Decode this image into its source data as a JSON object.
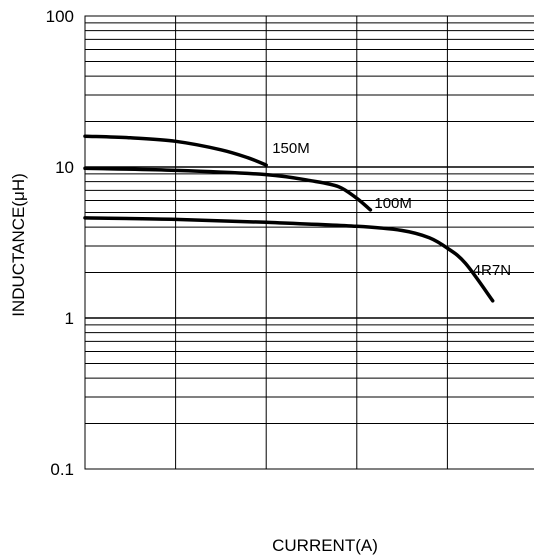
{
  "chart_data": {
    "type": "line",
    "title": "",
    "xlabel": "CURRENT(A)",
    "ylabel": "INDUCTANCE(μH)",
    "yscale": "log",
    "ylim": [
      0.1,
      100
    ],
    "yticks": [
      "100",
      "10",
      "1",
      "0.1"
    ],
    "xticks": [],
    "grid": true,
    "series": [
      {
        "name": "150M",
        "x": [
          0,
          0.5,
          1.0,
          1.5,
          1.8,
          2.0
        ],
        "y": [
          16,
          15.6,
          14.8,
          13,
          11.5,
          10.3
        ]
      },
      {
        "name": "100M",
        "x": [
          0,
          1.0,
          2.0,
          2.5,
          2.8,
          3.0,
          3.15
        ],
        "y": [
          9.8,
          9.5,
          8.9,
          8.1,
          7.4,
          6.2,
          5.2
        ]
      },
      {
        "name": "4R7N",
        "x": [
          0,
          1.0,
          2.0,
          3.0,
          3.5,
          3.8,
          4.0,
          4.2,
          4.5
        ],
        "y": [
          4.6,
          4.5,
          4.3,
          4.05,
          3.8,
          3.4,
          2.9,
          2.3,
          1.3
        ]
      }
    ]
  }
}
